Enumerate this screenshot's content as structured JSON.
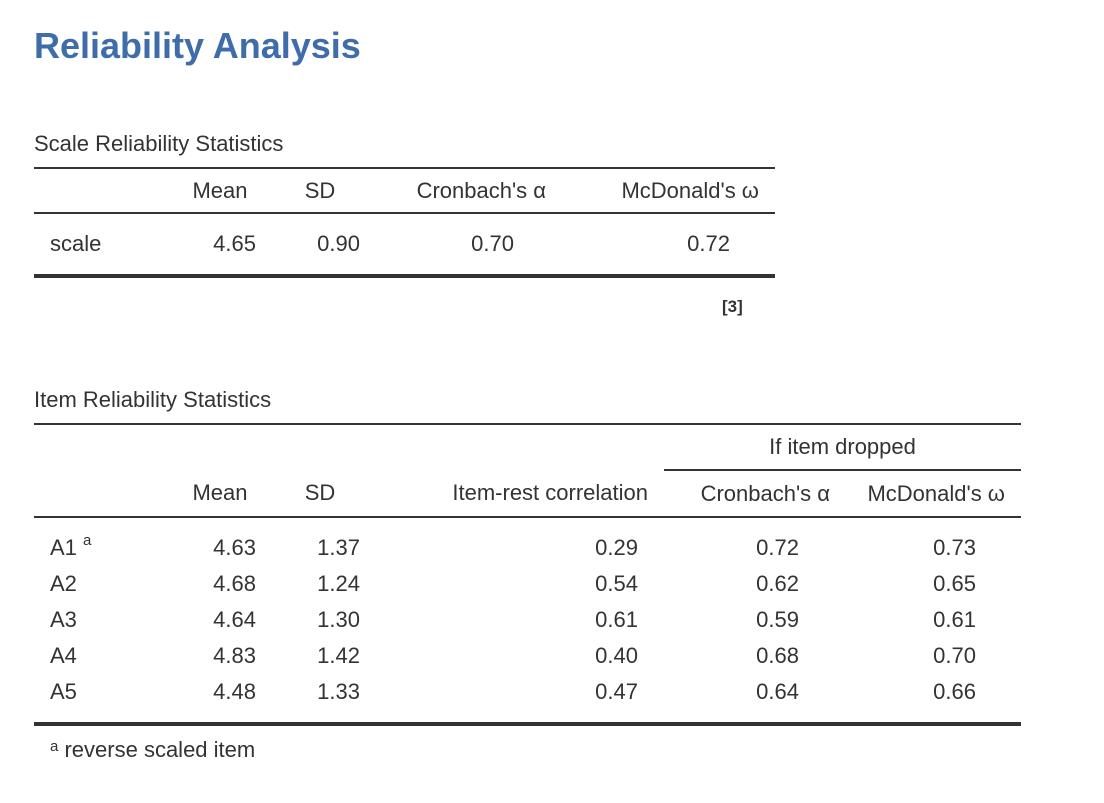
{
  "page": {
    "title": "Reliability Analysis"
  },
  "scale_table": {
    "caption": "Scale Reliability Statistics",
    "headers": [
      "",
      "Mean",
      "SD",
      "Cronbach's α",
      "McDonald's ω"
    ],
    "rows": [
      {
        "label": "scale",
        "mean": "4.65",
        "sd": "0.90",
        "alpha": "0.70",
        "omega": "0.72"
      }
    ],
    "reference": "[3]"
  },
  "item_table": {
    "caption": "Item Reliability Statistics",
    "group_header": "If item dropped",
    "headers": [
      "",
      "Mean",
      "SD",
      "Item-rest correlation",
      "Cronbach's α",
      "McDonald's ω"
    ],
    "rows": [
      {
        "label": "A1",
        "marker": "a",
        "mean": "4.63",
        "sd": "1.37",
        "item_rest": "0.29",
        "alpha": "0.72",
        "omega": "0.73"
      },
      {
        "label": "A2",
        "marker": "",
        "mean": "4.68",
        "sd": "1.24",
        "item_rest": "0.54",
        "alpha": "0.62",
        "omega": "0.65"
      },
      {
        "label": "A3",
        "marker": "",
        "mean": "4.64",
        "sd": "1.30",
        "item_rest": "0.61",
        "alpha": "0.59",
        "omega": "0.61"
      },
      {
        "label": "A4",
        "marker": "",
        "mean": "4.83",
        "sd": "1.42",
        "item_rest": "0.40",
        "alpha": "0.68",
        "omega": "0.70"
      },
      {
        "label": "A5",
        "marker": "",
        "mean": "4.48",
        "sd": "1.33",
        "item_rest": "0.47",
        "alpha": "0.64",
        "omega": "0.66"
      }
    ],
    "note": {
      "marker": "a",
      "text": "reverse scaled item"
    }
  },
  "colors": {
    "title": "#3e6da9",
    "text": "#333333",
    "rule": "#333333",
    "background": "#ffffff"
  }
}
